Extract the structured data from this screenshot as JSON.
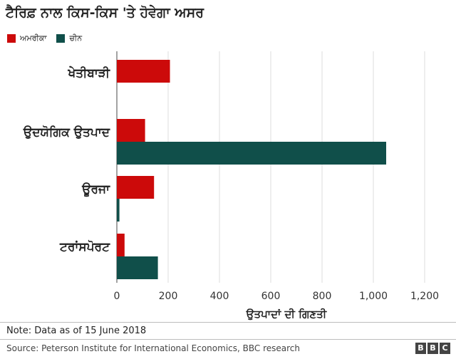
{
  "chart_data": {
    "type": "bar",
    "orientation": "horizontal",
    "title": "ਟੈਰਿਫ਼ ਨਾਲ ਕਿਸ-ਕਿਸ 'ਤੇ ਹੋਵੇਗਾ ਅਸਰ",
    "categories": [
      "ਖੇਤੀਬਾੜੀ",
      "ਉਦਯੋਗਿਕ ਉਤਪਾਦ",
      "ਊਰਜਾ",
      "ਟਰਾਂਸਪੋਰਟ"
    ],
    "series": [
      {
        "name": "ਅਮਰੀਕਾ",
        "color": "#cc0a0a",
        "values": [
          207,
          110,
          145,
          30
        ]
      },
      {
        "name": "ਚੀਨ",
        "color": "#104f4a",
        "values": [
          0,
          1050,
          10,
          160
        ]
      }
    ],
    "xlabel": "ਉਤਪਾਦਾਂ ਦੀ ਗਿਣਤੀ",
    "xticks": [
      0,
      200,
      400,
      600,
      800,
      1000,
      1200
    ],
    "xtick_labels": [
      "0",
      "200",
      "400",
      "600",
      "800",
      "1,000",
      "1,200"
    ],
    "xlim": [
      0,
      1200
    ],
    "grid": true,
    "legend_position": "top-left"
  },
  "footer": {
    "note": "Note: Data as of 15 June 2018",
    "source": "Source: Peterson Institute for International Economics, BBC research",
    "logo_letters": [
      "B",
      "B",
      "C"
    ]
  }
}
